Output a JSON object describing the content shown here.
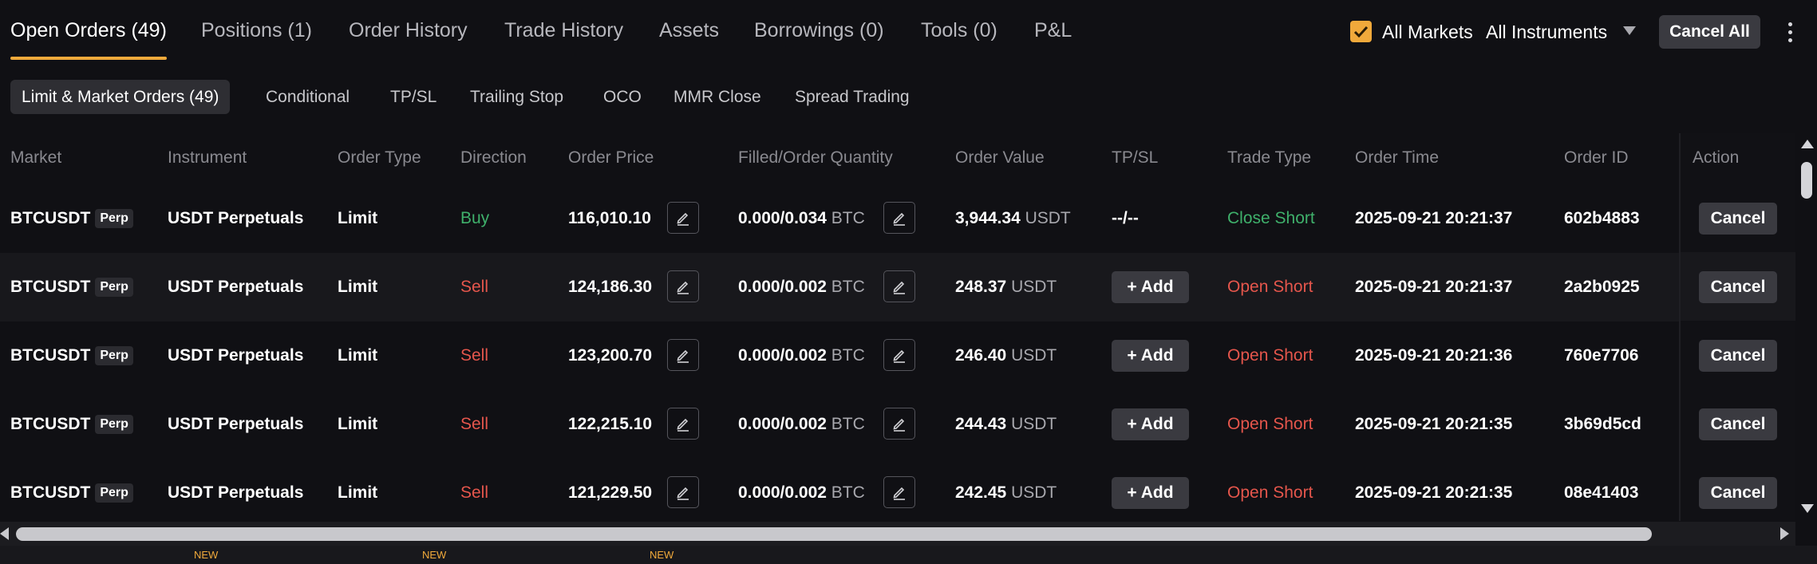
{
  "tabs": [
    {
      "label": "Open Orders (49)",
      "active": true
    },
    {
      "label": "Positions (1)"
    },
    {
      "label": "Order History"
    },
    {
      "label": "Trade History"
    },
    {
      "label": "Assets"
    },
    {
      "label": "Borrowings (0)"
    },
    {
      "label": "Tools (0)"
    },
    {
      "label": "P&L"
    }
  ],
  "filters": {
    "all_markets_label": "All Markets",
    "all_markets_checked": true,
    "instruments_select": "All Instruments",
    "cancel_all_label": "Cancel All"
  },
  "subtabs": [
    {
      "label": "Limit & Market Orders (49)",
      "active": true
    },
    {
      "label": "Conditional"
    },
    {
      "label": "TP/SL"
    },
    {
      "label": "Trailing Stop"
    },
    {
      "label": "OCO"
    },
    {
      "label": "MMR Close"
    },
    {
      "label": "Spread Trading"
    }
  ],
  "columns": [
    "Market",
    "Instrument",
    "Order Type",
    "Direction",
    "Order Price",
    "Filled/Order Quantity",
    "Order Value",
    "TP/SL",
    "Trade Type",
    "Order Time",
    "Order ID",
    "Action"
  ],
  "rows": [
    {
      "market": "BTCUSDT",
      "badge": "Perp",
      "instrument": "USDT Perpetuals",
      "order_type": "Limit",
      "direction": "Buy",
      "price": "116,010.10",
      "qty": "0.000/0.034",
      "qty_unit": "BTC",
      "value": "3,944.34",
      "value_unit": "USDT",
      "tpsl": "--/--",
      "trade_type": "Close Short",
      "time": "2025-09-21 20:21:37",
      "order_id": "602b4883",
      "action": "Cancel"
    },
    {
      "market": "BTCUSDT",
      "badge": "Perp",
      "instrument": "USDT Perpetuals",
      "order_type": "Limit",
      "direction": "Sell",
      "price": "124,186.30",
      "qty": "0.000/0.002",
      "qty_unit": "BTC",
      "value": "248.37",
      "value_unit": "USDT",
      "tpsl": "Add",
      "trade_type": "Open Short",
      "time": "2025-09-21 20:21:37",
      "order_id": "2a2b0925",
      "action": "Cancel"
    },
    {
      "market": "BTCUSDT",
      "badge": "Perp",
      "instrument": "USDT Perpetuals",
      "order_type": "Limit",
      "direction": "Sell",
      "price": "123,200.70",
      "qty": "0.000/0.002",
      "qty_unit": "BTC",
      "value": "246.40",
      "value_unit": "USDT",
      "tpsl": "Add",
      "trade_type": "Open Short",
      "time": "2025-09-21 20:21:36",
      "order_id": "760e7706",
      "action": "Cancel"
    },
    {
      "market": "BTCUSDT",
      "badge": "Perp",
      "instrument": "USDT Perpetuals",
      "order_type": "Limit",
      "direction": "Sell",
      "price": "122,215.10",
      "qty": "0.000/0.002",
      "qty_unit": "BTC",
      "value": "244.43",
      "value_unit": "USDT",
      "tpsl": "Add",
      "trade_type": "Open Short",
      "time": "2025-09-21 20:21:35",
      "order_id": "3b69d5cd",
      "action": "Cancel"
    },
    {
      "market": "BTCUSDT",
      "badge": "Perp",
      "instrument": "USDT Perpetuals",
      "order_type": "Limit",
      "direction": "Sell",
      "price": "121,229.50",
      "qty": "0.000/0.002",
      "qty_unit": "BTC",
      "value": "242.45",
      "value_unit": "USDT",
      "tpsl": "Add",
      "trade_type": "Open Short",
      "time": "2025-09-21 20:21:35",
      "order_id": "08e41403",
      "action": "Cancel"
    }
  ],
  "footer": {
    "new_badge": "NEW"
  },
  "colors": {
    "accent": "#f0a93b",
    "buy": "#3fb06b",
    "sell": "#e5564c"
  }
}
